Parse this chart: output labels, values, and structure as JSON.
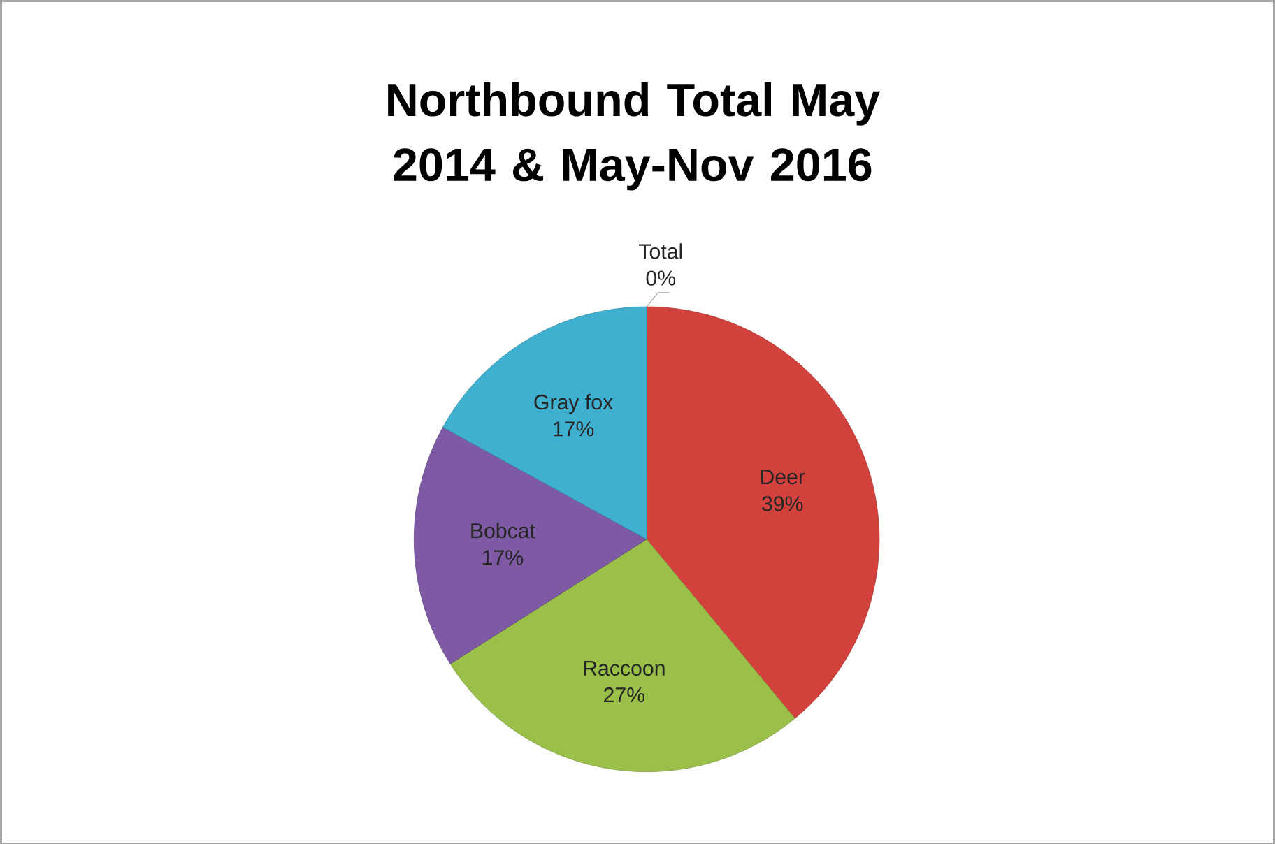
{
  "chart_data": {
    "type": "pie",
    "title": "Northbound Total May 2014 & May-Nov 2016",
    "categories": [
      "Deer",
      "Raccoon",
      "Bobcat",
      "Gray fox",
      "Total"
    ],
    "values": [
      39,
      27,
      17,
      17,
      0
    ],
    "value_labels": [
      "39%",
      "27%",
      "17%",
      "17%",
      "0%"
    ],
    "colors": [
      "#d2413c",
      "#9bc04a",
      "#7e5aa4",
      "#3fb0cf",
      "#f79646"
    ]
  }
}
